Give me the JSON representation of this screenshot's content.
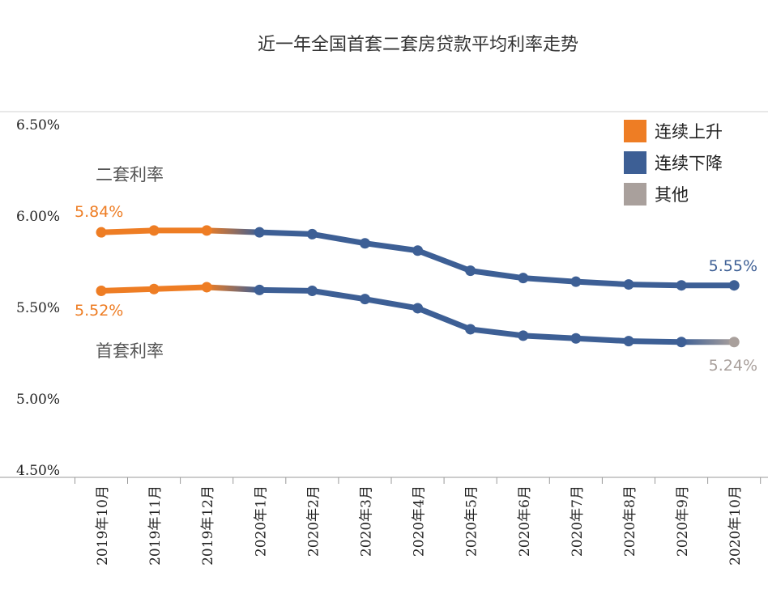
{
  "chart_data": {
    "type": "line",
    "title": "近一年全国首套二套房贷款平均利率走势",
    "categories": [
      "2019年10月",
      "2019年11月",
      "2019年12月",
      "2020年1月",
      "2020年2月",
      "2020年3月",
      "2020年4月",
      "2020年5月",
      "2020年6月",
      "2020年7月",
      "2020年8月",
      "2020年9月",
      "2020年10月"
    ],
    "ylim": [
      4.5,
      6.5
    ],
    "yticks": [
      6.5,
      6.0,
      5.5,
      5.0,
      4.5
    ],
    "ytick_labels": [
      "6.50%",
      "6.00%",
      "5.50%",
      "5.00%",
      "4.50%"
    ],
    "series": [
      {
        "name": "二套利率",
        "values": [
          5.84,
          5.85,
          5.85,
          5.84,
          5.83,
          5.78,
          5.74,
          5.63,
          5.59,
          5.57,
          5.555,
          5.55,
          5.55
        ],
        "start_label": "5.84%",
        "end_label": "5.55%"
      },
      {
        "name": "首套利率",
        "values": [
          5.52,
          5.53,
          5.54,
          5.525,
          5.52,
          5.475,
          5.425,
          5.31,
          5.275,
          5.26,
          5.245,
          5.24,
          5.24
        ],
        "start_label": "5.52%",
        "end_label": "5.24%"
      }
    ],
    "legend": {
      "position": "top-right",
      "items": [
        {
          "label": "连续上升",
          "color": "#EE7D24"
        },
        {
          "label": "连续下降",
          "color": "#3D5F95"
        },
        {
          "label": "其他",
          "color": "#A9A09C"
        }
      ]
    },
    "colors": {
      "rise": "#EE7D24",
      "fall": "#3D5F95",
      "other": "#A9A09C",
      "axis": "#c8c8c8",
      "gridline": "#d0d0d0"
    }
  }
}
